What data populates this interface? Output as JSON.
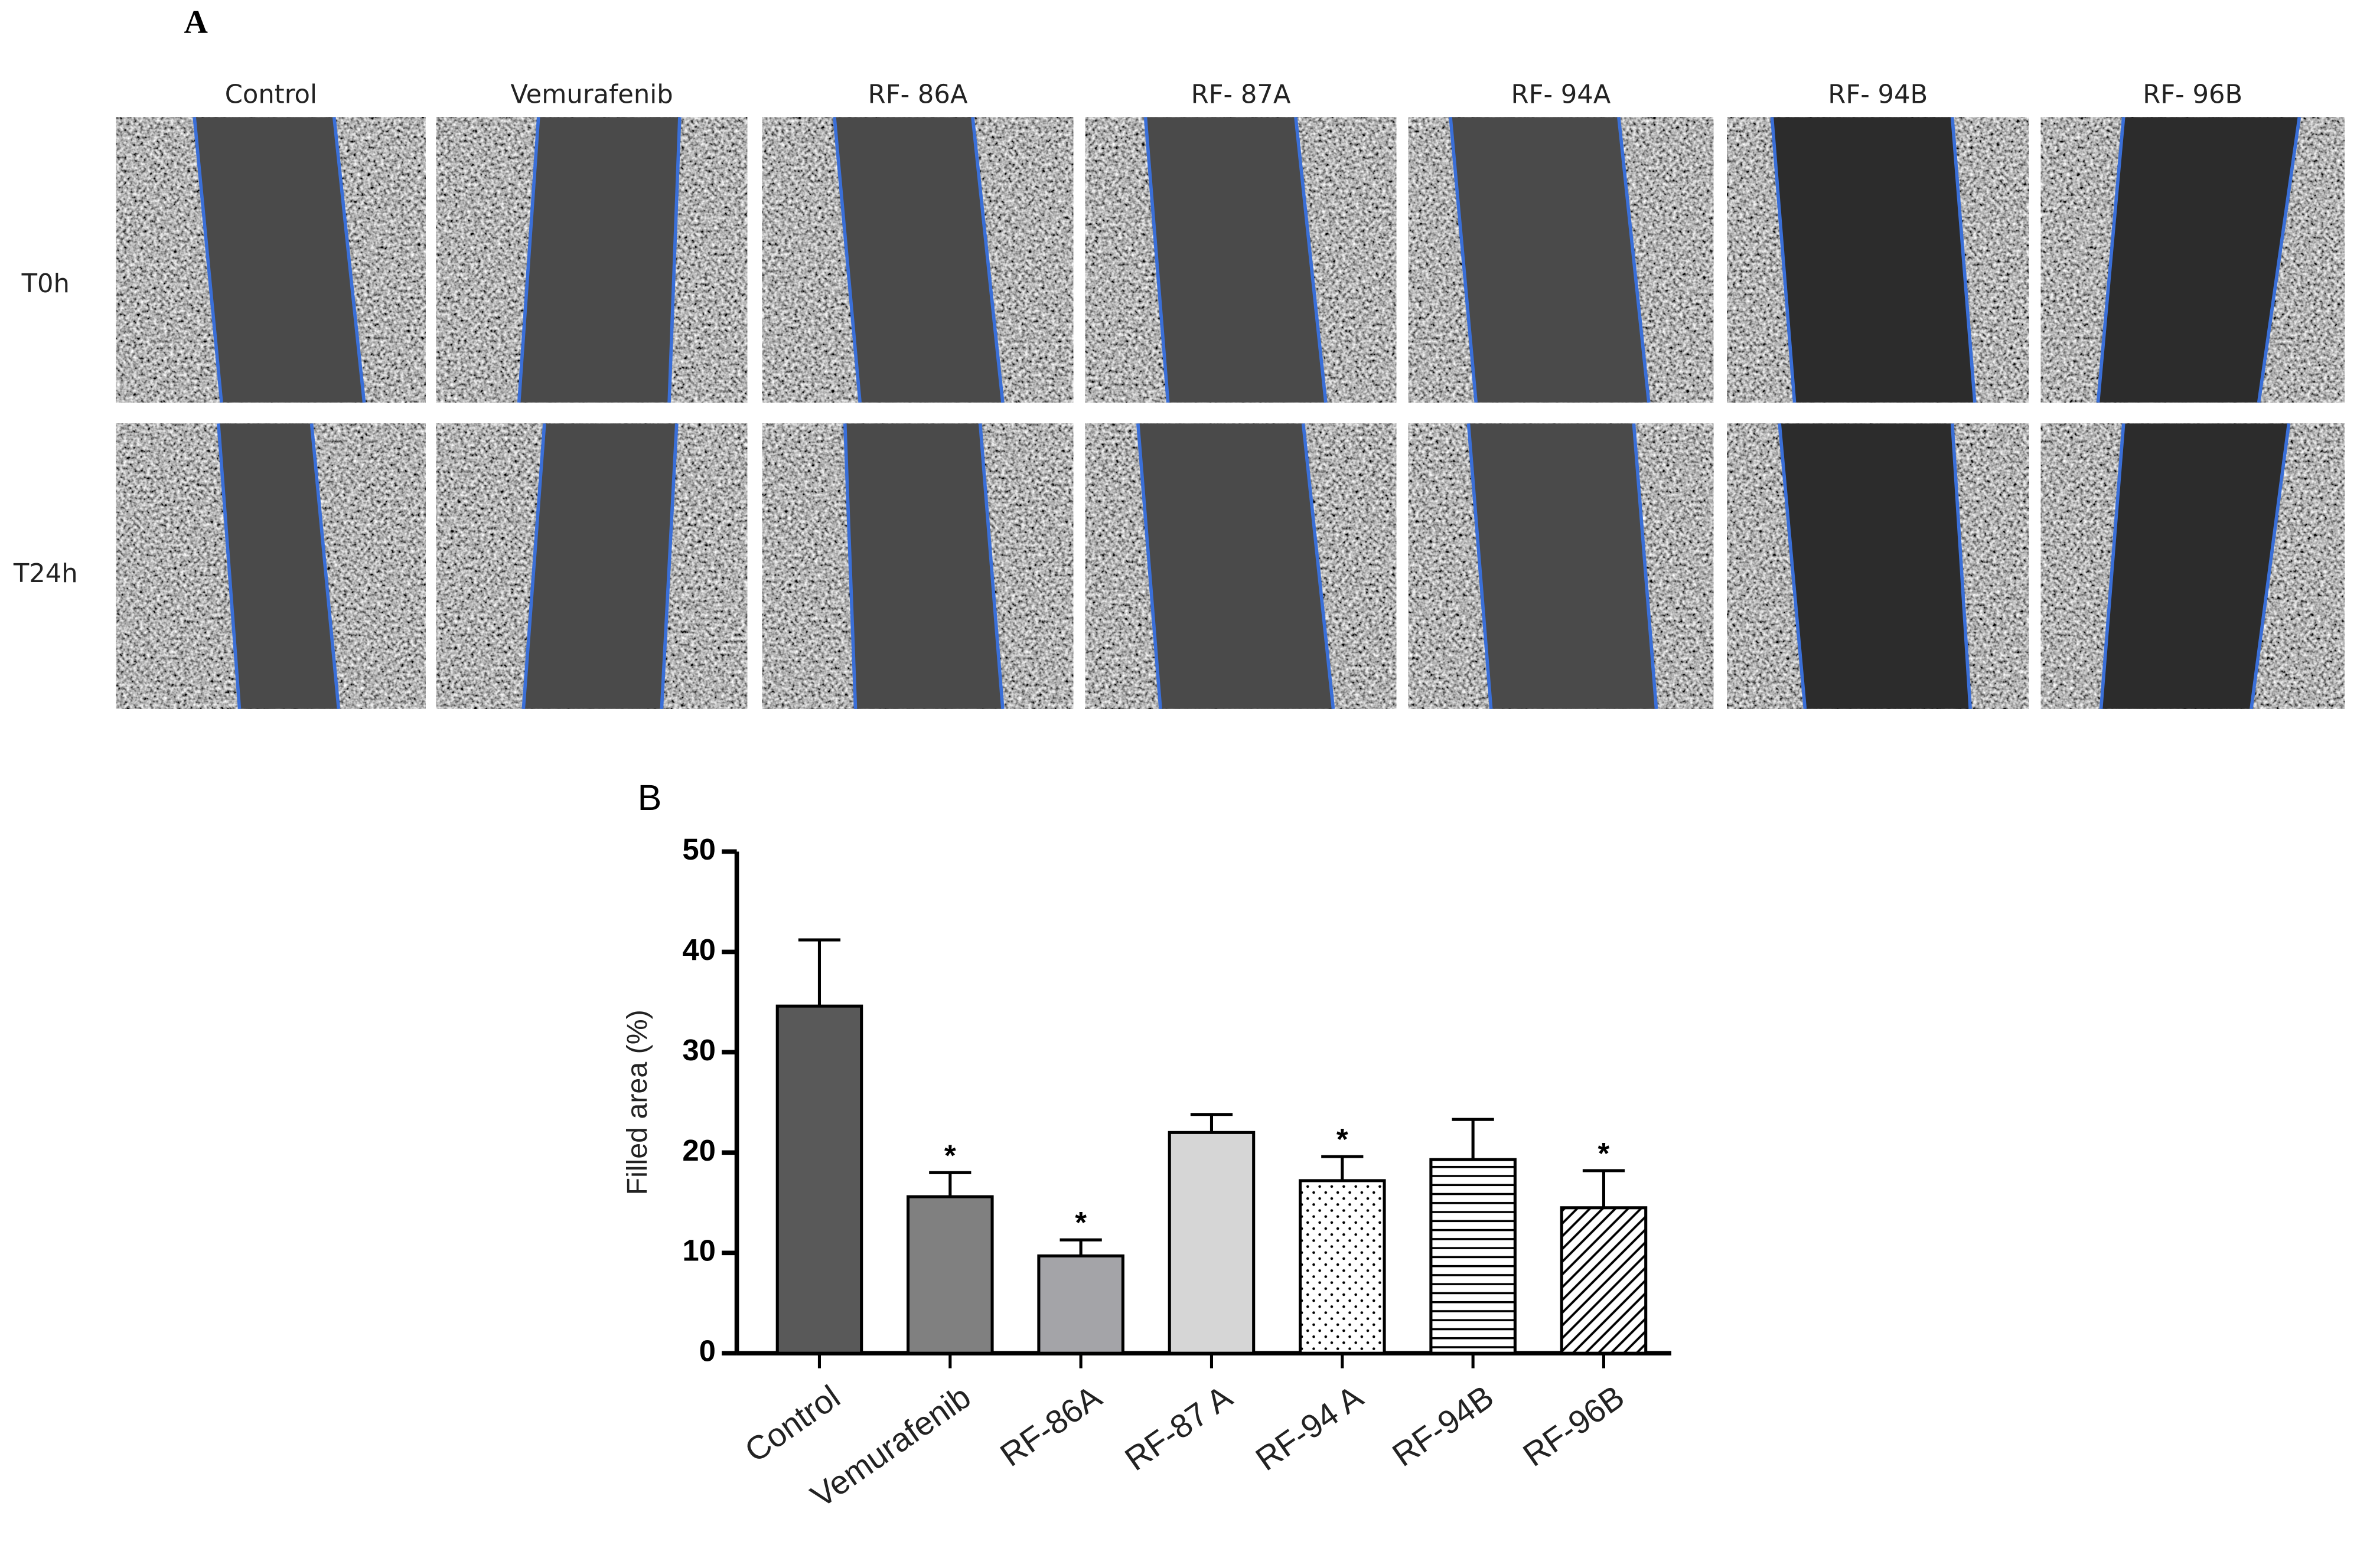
{
  "panel_a": {
    "label": "A",
    "columns": [
      "Control",
      "Vemurafenib",
      "RF- 86A",
      "RF- 87A",
      "RF- 94A",
      "RF- 94B",
      "RF- 96B"
    ],
    "rows": [
      "T0h",
      "T24h"
    ]
  },
  "chart_data": {
    "type": "bar",
    "panel_label": "B",
    "y_label": "Filled area (%)",
    "categories": [
      "Control",
      "Vemurafenib",
      "RF-86A",
      "RF-87 A",
      "RF-94 A",
      "RF-94B",
      "RF-96B"
    ],
    "values": [
      34.6,
      15.6,
      9.7,
      22,
      17.2,
      19.3,
      14.5
    ],
    "errors": [
      6.6,
      2.4,
      1.6,
      1.8,
      2.4,
      4.0,
      3.7
    ],
    "annotations": [
      null,
      "*",
      "*",
      null,
      "*",
      null,
      "*"
    ],
    "colors": [
      "#595959",
      "#808080",
      "#a4a4a8",
      "#d6d6d6",
      "#ffffff",
      "#ffffff",
      "#ffffff"
    ],
    "patterns": [
      "solid",
      "solid",
      "solid",
      "solid",
      "dots",
      "hlines",
      "diagonal"
    ],
    "ylim": [
      0,
      50
    ],
    "yticks": [
      0,
      10,
      20,
      30,
      40,
      50
    ]
  }
}
